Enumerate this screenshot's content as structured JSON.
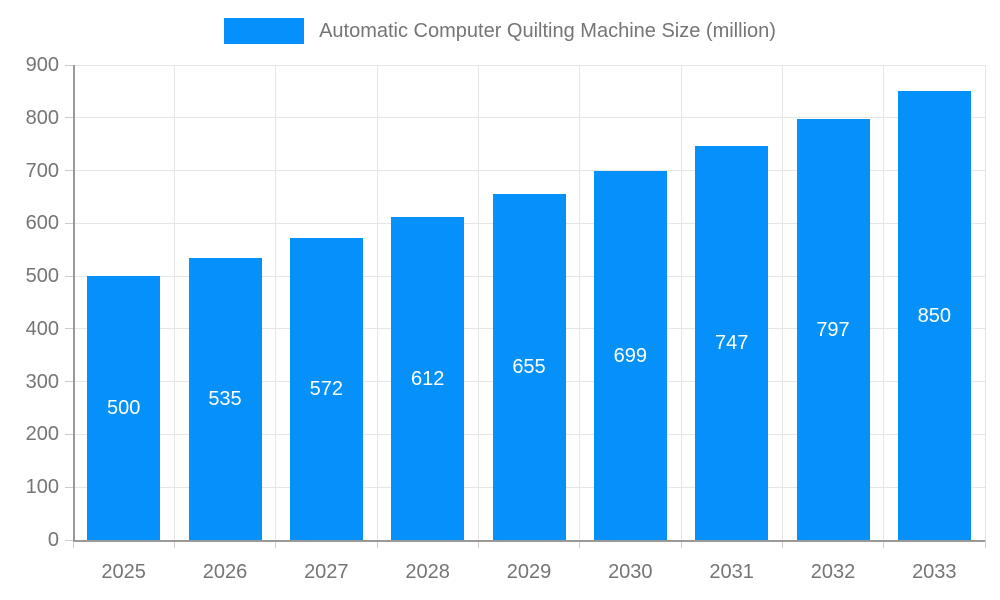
{
  "chart_data": {
    "type": "bar",
    "title": "Automatic Computer Quilting Machine Size (million)",
    "categories": [
      "2025",
      "2026",
      "2027",
      "2028",
      "2029",
      "2030",
      "2031",
      "2032",
      "2033"
    ],
    "values": [
      500,
      535,
      572,
      612,
      655,
      699,
      747,
      797,
      850
    ],
    "xlabel": "",
    "ylabel": "",
    "ylim": [
      0,
      900
    ],
    "ytick_step": 100,
    "ytick_labels": [
      "0",
      "100",
      "200",
      "300",
      "400",
      "500",
      "600",
      "700",
      "800",
      "900"
    ],
    "grid": true,
    "legend_position": "top-center",
    "data_labels": "inside-middle",
    "colors": {
      "bar": "#0590fa",
      "grid": "#e6e6e6",
      "axis": "#999999",
      "tick": "#cccccc",
      "tick_label": "#757575",
      "data_label": "#ffffff",
      "background": "#ffffff"
    }
  }
}
